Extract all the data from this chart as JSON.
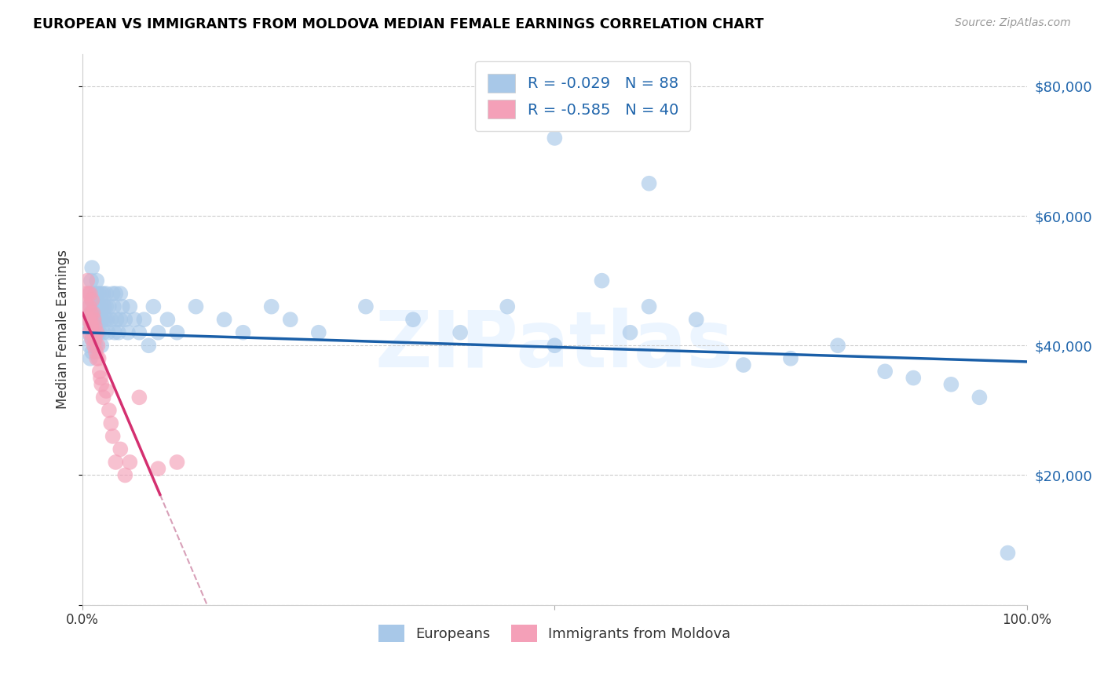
{
  "title": "EUROPEAN VS IMMIGRANTS FROM MOLDOVA MEDIAN FEMALE EARNINGS CORRELATION CHART",
  "source": "Source: ZipAtlas.com",
  "ylabel": "Median Female Earnings",
  "ylim": [
    0,
    85000
  ],
  "xlim": [
    0,
    1.0
  ],
  "blue_R": -0.029,
  "blue_N": 88,
  "pink_R": -0.585,
  "pink_N": 40,
  "blue_color": "#a8c8e8",
  "pink_color": "#f4a0b8",
  "blue_line_color": "#1a5fa8",
  "pink_line_color": "#d43070",
  "dash_color": "#d8a0b8",
  "watermark": "ZIPatlas",
  "legend_label_blue": "Europeans",
  "legend_label_pink": "Immigrants from Moldova",
  "eu_x": [
    0.005,
    0.006,
    0.007,
    0.007,
    0.008,
    0.008,
    0.009,
    0.009,
    0.01,
    0.01,
    0.01,
    0.01,
    0.01,
    0.012,
    0.012,
    0.013,
    0.013,
    0.014,
    0.014,
    0.015,
    0.015,
    0.015,
    0.016,
    0.016,
    0.017,
    0.017,
    0.018,
    0.018,
    0.019,
    0.02,
    0.02,
    0.02,
    0.021,
    0.022,
    0.022,
    0.023,
    0.024,
    0.025,
    0.025,
    0.026,
    0.027,
    0.028,
    0.03,
    0.032,
    0.033,
    0.034,
    0.035,
    0.036,
    0.038,
    0.04,
    0.04,
    0.042,
    0.045,
    0.048,
    0.05,
    0.055,
    0.06,
    0.065,
    0.07,
    0.075,
    0.08,
    0.09,
    0.1,
    0.12,
    0.15,
    0.17,
    0.2,
    0.22,
    0.25,
    0.3,
    0.35,
    0.4,
    0.45,
    0.5,
    0.55,
    0.58,
    0.6,
    0.65,
    0.7,
    0.75,
    0.8,
    0.85,
    0.88,
    0.92,
    0.95,
    0.98,
    0.5,
    0.6
  ],
  "eu_y": [
    42000,
    44000,
    46000,
    40000,
    48000,
    38000,
    45000,
    50000,
    43000,
    47000,
    41000,
    39000,
    52000,
    46000,
    44000,
    48000,
    42000,
    46000,
    40000,
    50000,
    44000,
    48000,
    46000,
    42000,
    44000,
    48000,
    46000,
    42000,
    44000,
    48000,
    46000,
    40000,
    44000,
    48000,
    42000,
    46000,
    44000,
    46000,
    48000,
    44000,
    42000,
    46000,
    44000,
    48000,
    46000,
    42000,
    48000,
    44000,
    42000,
    48000,
    44000,
    46000,
    44000,
    42000,
    46000,
    44000,
    42000,
    44000,
    40000,
    46000,
    42000,
    44000,
    42000,
    46000,
    44000,
    42000,
    46000,
    44000,
    42000,
    46000,
    44000,
    42000,
    46000,
    40000,
    50000,
    42000,
    46000,
    44000,
    37000,
    38000,
    40000,
    36000,
    35000,
    34000,
    32000,
    8000,
    72000,
    65000
  ],
  "md_x": [
    0.004,
    0.005,
    0.005,
    0.006,
    0.006,
    0.007,
    0.007,
    0.008,
    0.008,
    0.009,
    0.009,
    0.01,
    0.01,
    0.01,
    0.011,
    0.011,
    0.012,
    0.012,
    0.013,
    0.013,
    0.014,
    0.015,
    0.015,
    0.016,
    0.017,
    0.018,
    0.019,
    0.02,
    0.022,
    0.025,
    0.028,
    0.03,
    0.032,
    0.035,
    0.04,
    0.045,
    0.05,
    0.06,
    0.08,
    0.1
  ],
  "md_y": [
    48000,
    50000,
    46000,
    44000,
    48000,
    46000,
    42000,
    44000,
    48000,
    43000,
    45000,
    47000,
    43000,
    41000,
    45000,
    42000,
    44000,
    40000,
    43000,
    41000,
    39000,
    42000,
    38000,
    40000,
    38000,
    36000,
    35000,
    34000,
    32000,
    33000,
    30000,
    28000,
    26000,
    22000,
    24000,
    20000,
    22000,
    32000,
    21000,
    22000
  ]
}
